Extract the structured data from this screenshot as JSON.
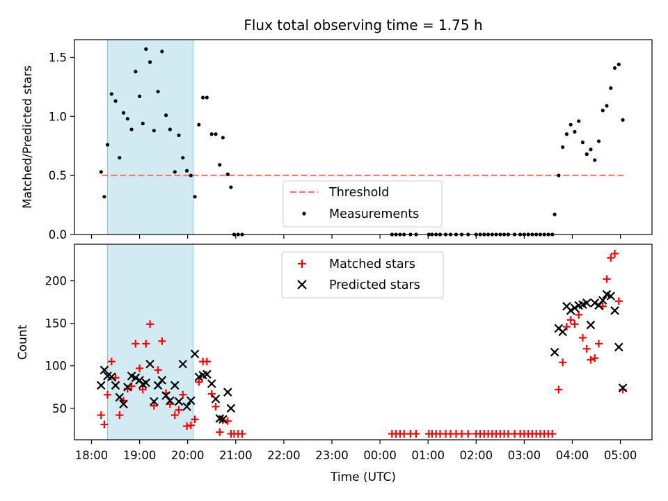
{
  "chart_data": {
    "title": "Flux total observing time = 1.75 h",
    "xlabel": "Time (UTC)",
    "x_ticks": [
      "18:00",
      "19:00",
      "20:00",
      "21:00",
      "22:00",
      "23:00",
      "00:00",
      "01:00",
      "02:00",
      "03:00",
      "04:00",
      "05:00"
    ],
    "highlight_span": [
      "18:20",
      "20:07"
    ],
    "colors": {
      "highlight": "#add8e6",
      "threshold": "#ff7070",
      "measurements": "#000000",
      "matched": "#ff0000",
      "predicted": "#000000"
    },
    "panels": [
      {
        "type": "scatter",
        "ylabel": "Matched/Predicted stars",
        "ylim": [
          0,
          1.65
        ],
        "y_ticks": [
          "0.0",
          "0.5",
          "1.0",
          "1.5"
        ],
        "y_tick_values": [
          0,
          0.5,
          1.0,
          1.5
        ],
        "legend": {
          "position": "lower-center",
          "entries": [
            "Threshold",
            "Measurements"
          ]
        },
        "threshold": {
          "name": "Threshold",
          "y": 0.5,
          "x_range": [
            "18:13",
            "05:05"
          ]
        },
        "series": [
          {
            "name": "Measurements",
            "marker": "dot",
            "points": [
              [
                "18:12",
                0.53
              ],
              [
                "18:16",
                0.32
              ],
              [
                "18:20",
                0.76
              ],
              [
                "18:25",
                1.19
              ],
              [
                "18:30",
                1.13
              ],
              [
                "18:35",
                0.65
              ],
              [
                "18:40",
                1.03
              ],
              [
                "18:45",
                0.98
              ],
              [
                "18:50",
                0.89
              ],
              [
                "18:55",
                1.38
              ],
              [
                "19:00",
                1.17
              ],
              [
                "19:04",
                0.94
              ],
              [
                "19:08",
                1.57
              ],
              [
                "19:13",
                1.46
              ],
              [
                "19:18",
                0.88
              ],
              [
                "19:23",
                1.21
              ],
              [
                "19:28",
                1.55
              ],
              [
                "19:33",
                1.01
              ],
              [
                "19:38",
                0.89
              ],
              [
                "19:44",
                0.53
              ],
              [
                "19:49",
                0.84
              ],
              [
                "19:54",
                0.65
              ],
              [
                "19:59",
                0.54
              ],
              [
                "20:04",
                0.5
              ],
              [
                "20:09",
                0.32
              ],
              [
                "20:14",
                0.93
              ],
              [
                "20:19",
                1.16
              ],
              [
                "20:24",
                1.16
              ],
              [
                "20:30",
                0.85
              ],
              [
                "20:35",
                0.85
              ],
              [
                "20:40",
                0.59
              ],
              [
                "20:44",
                0.82
              ],
              [
                "20:50",
                0.51
              ],
              [
                "20:54",
                0.4
              ],
              [
                "20:58",
                0.0
              ],
              [
                "21:03",
                0.0
              ],
              [
                "21:08",
                0.0
              ],
              [
                "00:15",
                0.0
              ],
              [
                "00:20",
                0.0
              ],
              [
                "00:25",
                0.0
              ],
              [
                "00:30",
                0.0
              ],
              [
                "00:38",
                0.0
              ],
              [
                "00:45",
                0.0
              ],
              [
                "01:01",
                0.0
              ],
              [
                "01:05",
                0.0
              ],
              [
                "01:10",
                0.0
              ],
              [
                "01:15",
                0.0
              ],
              [
                "01:22",
                0.0
              ],
              [
                "01:28",
                0.0
              ],
              [
                "01:35",
                0.0
              ],
              [
                "01:42",
                0.0
              ],
              [
                "01:50",
                0.0
              ],
              [
                "02:00",
                0.0
              ],
              [
                "02:05",
                0.0
              ],
              [
                "02:10",
                0.0
              ],
              [
                "02:15",
                0.0
              ],
              [
                "02:20",
                0.0
              ],
              [
                "02:25",
                0.0
              ],
              [
                "02:30",
                0.0
              ],
              [
                "02:35",
                0.0
              ],
              [
                "02:40",
                0.0
              ],
              [
                "02:48",
                0.0
              ],
              [
                "02:55",
                0.0
              ],
              [
                "03:00",
                0.0
              ],
              [
                "03:05",
                0.0
              ],
              [
                "03:10",
                0.0
              ],
              [
                "03:15",
                0.0
              ],
              [
                "03:20",
                0.0
              ],
              [
                "03:25",
                0.0
              ],
              [
                "03:30",
                0.0
              ],
              [
                "03:35",
                0.0
              ],
              [
                "03:38",
                0.17
              ],
              [
                "03:43",
                0.5
              ],
              [
                "03:48",
                0.74
              ],
              [
                "03:53",
                0.85
              ],
              [
                "03:58",
                0.93
              ],
              [
                "04:03",
                0.87
              ],
              [
                "04:08",
                0.96
              ],
              [
                "04:13",
                0.78
              ],
              [
                "04:18",
                0.68
              ],
              [
                "04:23",
                0.72
              ],
              [
                "04:28",
                0.63
              ],
              [
                "04:33",
                0.79
              ],
              [
                "04:38",
                1.05
              ],
              [
                "04:43",
                1.09
              ],
              [
                "04:48",
                1.24
              ],
              [
                "04:53",
                1.41
              ],
              [
                "04:58",
                1.44
              ],
              [
                "05:03",
                0.97
              ]
            ]
          }
        ]
      },
      {
        "type": "scatter",
        "ylabel": "Count",
        "ylim": [
          13,
          243
        ],
        "y_ticks": [
          "50",
          "100",
          "150",
          "200"
        ],
        "y_tick_values": [
          50,
          100,
          150,
          200
        ],
        "legend": {
          "position": "upper-center",
          "entries": [
            "Matched stars",
            "Predicted stars"
          ]
        },
        "series": [
          {
            "name": "Matched stars",
            "marker": "plus",
            "points": [
              [
                "18:12",
                42
              ],
              [
                "18:16",
                31
              ],
              [
                "18:20",
                66
              ],
              [
                "18:25",
                105
              ],
              [
                "18:30",
                86
              ],
              [
                "18:35",
                42
              ],
              [
                "18:40",
                59
              ],
              [
                "18:45",
                73
              ],
              [
                "18:50",
                76
              ],
              [
                "18:55",
                126
              ],
              [
                "19:00",
                97
              ],
              [
                "19:04",
                72
              ],
              [
                "19:08",
                126
              ],
              [
                "19:13",
                149
              ],
              [
                "19:18",
                53
              ],
              [
                "19:23",
                95
              ],
              [
                "19:28",
                129
              ],
              [
                "19:33",
                68
              ],
              [
                "19:38",
                55
              ],
              [
                "19:44",
                42
              ],
              [
                "19:49",
                48
              ],
              [
                "19:54",
                66
              ],
              [
                "19:59",
                29
              ],
              [
                "20:04",
                30
              ],
              [
                "20:09",
                37
              ],
              [
                "20:14",
                81
              ],
              [
                "20:19",
                105
              ],
              [
                "20:24",
                105
              ],
              [
                "20:30",
                67
              ],
              [
                "20:35",
                52
              ],
              [
                "20:40",
                22
              ],
              [
                "20:44",
                36
              ],
              [
                "20:50",
                35
              ],
              [
                "20:54",
                20
              ],
              [
                "20:58",
                20
              ],
              [
                "21:03",
                20
              ],
              [
                "21:08",
                20
              ],
              [
                "00:15",
                20
              ],
              [
                "00:20",
                20
              ],
              [
                "00:25",
                20
              ],
              [
                "00:30",
                20
              ],
              [
                "00:38",
                20
              ],
              [
                "00:45",
                20
              ],
              [
                "01:01",
                20
              ],
              [
                "01:05",
                20
              ],
              [
                "01:10",
                20
              ],
              [
                "01:15",
                20
              ],
              [
                "01:22",
                20
              ],
              [
                "01:28",
                20
              ],
              [
                "01:35",
                20
              ],
              [
                "01:42",
                20
              ],
              [
                "01:50",
                20
              ],
              [
                "02:00",
                20
              ],
              [
                "02:05",
                20
              ],
              [
                "02:10",
                20
              ],
              [
                "02:15",
                20
              ],
              [
                "02:20",
                20
              ],
              [
                "02:25",
                20
              ],
              [
                "02:30",
                20
              ],
              [
                "02:35",
                20
              ],
              [
                "02:40",
                20
              ],
              [
                "02:48",
                20
              ],
              [
                "02:55",
                20
              ],
              [
                "03:00",
                20
              ],
              [
                "03:05",
                20
              ],
              [
                "03:10",
                20
              ],
              [
                "03:15",
                20
              ],
              [
                "03:20",
                20
              ],
              [
                "03:25",
                20
              ],
              [
                "03:30",
                20
              ],
              [
                "03:35",
                20
              ],
              [
                "03:43",
                72
              ],
              [
                "03:48",
                104
              ],
              [
                "03:53",
                146
              ],
              [
                "03:58",
                154
              ],
              [
                "04:03",
                149
              ],
              [
                "04:08",
                160
              ],
              [
                "04:13",
                133
              ],
              [
                "04:18",
                120
              ],
              [
                "04:23",
                107
              ],
              [
                "04:28",
                109
              ],
              [
                "04:33",
                126
              ],
              [
                "04:38",
                170
              ],
              [
                "04:43",
                202
              ],
              [
                "04:48",
                227
              ],
              [
                "04:53",
                232
              ],
              [
                "04:58",
                176
              ],
              [
                "05:03",
                72
              ]
            ]
          },
          {
            "name": "Predicted stars",
            "marker": "x",
            "points": [
              [
                "18:12",
                77
              ],
              [
                "18:16",
                95
              ],
              [
                "18:20",
                88
              ],
              [
                "18:25",
                87
              ],
              [
                "18:30",
                77
              ],
              [
                "18:35",
                63
              ],
              [
                "18:40",
                55
              ],
              [
                "18:45",
                75
              ],
              [
                "18:50",
                88
              ],
              [
                "18:55",
                86
              ],
              [
                "19:00",
                83
              ],
              [
                "19:04",
                78
              ],
              [
                "19:08",
                80
              ],
              [
                "19:13",
                102
              ],
              [
                "19:18",
                58
              ],
              [
                "19:23",
                77
              ],
              [
                "19:28",
                83
              ],
              [
                "19:33",
                65
              ],
              [
                "19:38",
                59
              ],
              [
                "19:44",
                77
              ],
              [
                "19:49",
                58
              ],
              [
                "19:54",
                102
              ],
              [
                "19:59",
                52
              ],
              [
                "20:04",
                59
              ],
              [
                "20:09",
                114
              ],
              [
                "20:14",
                87
              ],
              [
                "20:19",
                89
              ],
              [
                "20:24",
                90
              ],
              [
                "20:30",
                79
              ],
              [
                "20:35",
                61
              ],
              [
                "20:40",
                38
              ],
              [
                "20:44",
                37
              ],
              [
                "20:50",
                69
              ],
              [
                "20:54",
                50
              ],
              [
                "03:38",
                116
              ],
              [
                "03:43",
                144
              ],
              [
                "03:48",
                140
              ],
              [
                "03:53",
                170
              ],
              [
                "03:58",
                165
              ],
              [
                "04:03",
                168
              ],
              [
                "04:08",
                171
              ],
              [
                "04:13",
                172
              ],
              [
                "04:18",
                174
              ],
              [
                "04:23",
                148
              ],
              [
                "04:28",
                174
              ],
              [
                "04:33",
                171
              ],
              [
                "04:38",
                177
              ],
              [
                "04:43",
                184
              ],
              [
                "04:48",
                182
              ],
              [
                "04:53",
                165
              ],
              [
                "04:58",
                122
              ],
              [
                "05:03",
                74
              ]
            ]
          }
        ]
      }
    ]
  }
}
